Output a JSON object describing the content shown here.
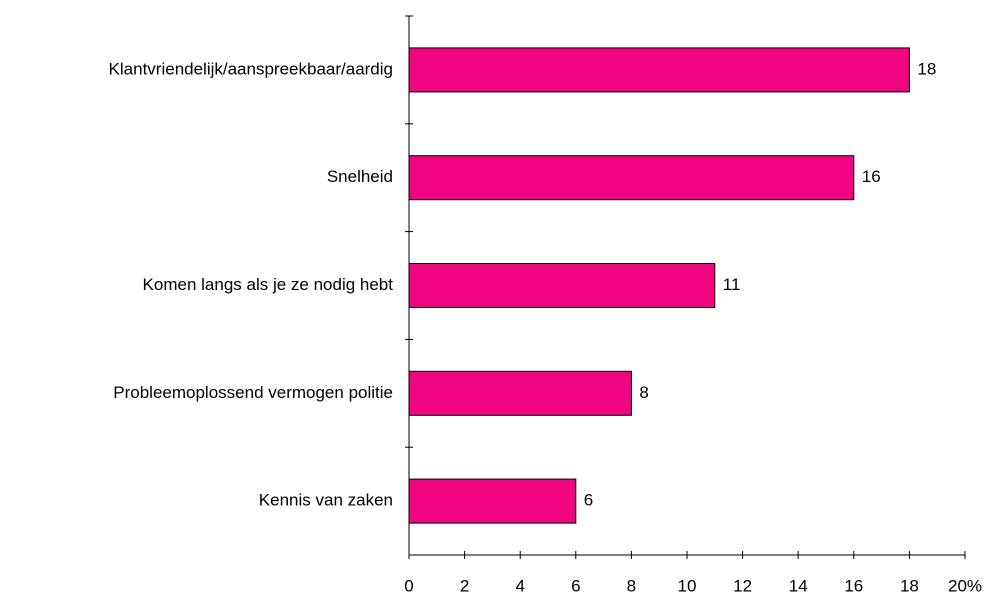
{
  "chart_data": {
    "type": "barh",
    "categories": [
      "Klantvriendelijk/aanspreekbaar/aardig",
      "Snelheid",
      "Komen langs als je ze nodig hebt",
      "Probleemoplossend vermogen politie",
      "Kennis van zaken"
    ],
    "values": [
      18,
      16,
      11,
      8,
      6
    ],
    "color": "#f0047f",
    "xlim": [
      0,
      20
    ],
    "xticks": [
      0,
      2,
      4,
      6,
      8,
      10,
      12,
      14,
      16,
      18,
      {
        "value": 20,
        "label": "20%"
      }
    ]
  }
}
